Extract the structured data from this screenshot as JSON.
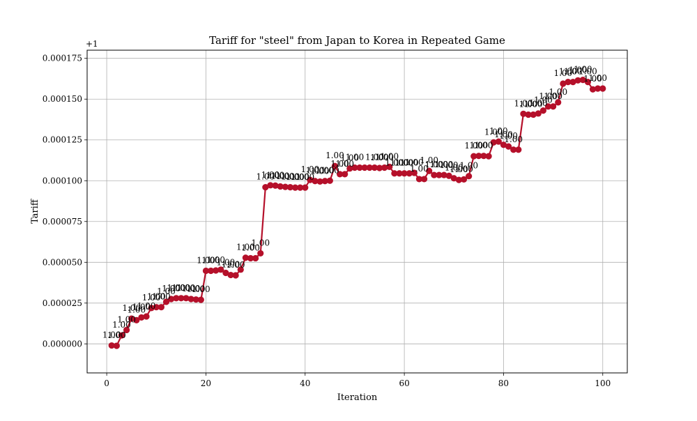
{
  "chart_data": {
    "type": "line",
    "title": "Tariff for \"steel\" from Japan to Korea in Repeated Game",
    "xlabel": "Iteration",
    "ylabel": "Tariff",
    "y_offset_label": "+1",
    "xlim": [
      -3.95,
      104.95
    ],
    "ylim": [
      -1.78e-05,
      0.00018
    ],
    "xticks": [
      0,
      20,
      40,
      60,
      80,
      100
    ],
    "xtick_labels": [
      "0",
      "20",
      "40",
      "60",
      "80",
      "100"
    ],
    "yticks": [
      0,
      2.5e-05,
      5e-05,
      7.5e-05,
      0.0001,
      0.000125,
      0.00015,
      0.000175
    ],
    "ytick_labels": [
      "0.000000",
      "0.000025",
      "0.000050",
      "0.000075",
      "0.000100",
      "0.000125",
      "0.000150",
      "0.000175"
    ],
    "grid": true,
    "color": "#b5102a",
    "series": [
      {
        "x": [
          1,
          2,
          3,
          4,
          5,
          6,
          7,
          8,
          9,
          10,
          11,
          12,
          13,
          14,
          15,
          16,
          17,
          18,
          19,
          20,
          21,
          22,
          23,
          24,
          25,
          26,
          27,
          28,
          29,
          30,
          31,
          32,
          33,
          34,
          35,
          36,
          37,
          38,
          39,
          40,
          41,
          42,
          43,
          44,
          45,
          46,
          47,
          48,
          49,
          50,
          51,
          52,
          53,
          54,
          55,
          56,
          57,
          58,
          59,
          60,
          61,
          62,
          63,
          64,
          65,
          66,
          67,
          68,
          69,
          70,
          71,
          72,
          73,
          74,
          75,
          76,
          77,
          78,
          79,
          80,
          81,
          82,
          83,
          84,
          85,
          86,
          87,
          88,
          89,
          90,
          91,
          92,
          93,
          94,
          95,
          96,
          97,
          98,
          99,
          100
        ],
        "values": [
          -1e-06,
          -1.2e-06,
          5.2e-06,
          8.5e-06,
          1.55e-05,
          1.45e-05,
          1.62e-05,
          1.68e-05,
          2.2e-05,
          2.25e-05,
          2.25e-05,
          2.58e-05,
          2.75e-05,
          2.8e-05,
          2.8e-05,
          2.8e-05,
          2.75e-05,
          2.72e-05,
          2.7e-05,
          4.48e-05,
          4.48e-05,
          4.5e-05,
          4.55e-05,
          4.35e-05,
          4.22e-05,
          4.2e-05,
          4.55e-05,
          5.28e-05,
          5.25e-05,
          5.25e-05,
          5.55e-05,
          9.6e-05,
          9.72e-05,
          9.7e-05,
          9.65e-05,
          9.62e-05,
          9.6e-05,
          9.58e-05,
          9.58e-05,
          9.58e-05,
          0.0001005,
          9.98e-05,
          9.95e-05,
          9.98e-05,
          0.0001,
          0.000109,
          0.000104,
          0.000104,
          0.0001075,
          0.000108,
          0.000108,
          0.000108,
          0.000108,
          0.000108,
          0.0001078,
          0.000108,
          0.0001085,
          0.0001045,
          0.0001045,
          0.0001045,
          0.0001045,
          0.0001048,
          0.000101,
          0.000101,
          0.000106,
          0.0001035,
          0.0001035,
          0.0001035,
          0.000103,
          0.0001015,
          0.0001005,
          0.0001008,
          0.0001028,
          0.000115,
          0.0001152,
          0.0001152,
          0.000115,
          0.0001235,
          0.000124,
          0.000122,
          0.000121,
          0.000119,
          0.000119,
          0.000141,
          0.0001405,
          0.0001405,
          0.0001412,
          0.000143,
          0.0001455,
          0.0001455,
          0.000148,
          0.0001595,
          0.0001605,
          0.0001605,
          0.0001615,
          0.0001618,
          0.0001605,
          0.000156,
          0.0001565,
          0.0001565
        ]
      }
    ],
    "data_label_text": "1.00",
    "data_labels": [
      {
        "x": 1,
        "text": "1.00"
      },
      {
        "x": 2,
        "text": "1.00"
      },
      {
        "x": 3,
        "text": "1.00"
      },
      {
        "x": 4,
        "text": "1.00"
      },
      {
        "x": 5,
        "text": "1.00"
      },
      {
        "x": 6,
        "text": "1.00"
      },
      {
        "x": 7,
        "text": "1.00"
      },
      {
        "x": 8,
        "text": "1.00"
      },
      {
        "x": 9,
        "text": "1.00"
      },
      {
        "x": 10,
        "text": "1.00"
      },
      {
        "x": 11,
        "text": "1.00"
      },
      {
        "x": 12,
        "text": "1.00"
      },
      {
        "x": 13,
        "text": "1.00"
      },
      {
        "x": 14,
        "text": "1.00"
      },
      {
        "x": 15,
        "text": "1.00"
      },
      {
        "x": 16,
        "text": "1.00"
      },
      {
        "x": 17,
        "text": "1.00"
      },
      {
        "x": 18,
        "text": "1.00"
      },
      {
        "x": 19,
        "text": "1.00"
      },
      {
        "x": 20,
        "text": "1.00"
      },
      {
        "x": 21,
        "text": "1.00"
      },
      {
        "x": 22,
        "text": "1.00"
      },
      {
        "x": 24,
        "text": "1.00"
      },
      {
        "x": 25,
        "text": "1.00"
      },
      {
        "x": 26,
        "text": "1.00"
      },
      {
        "x": 28,
        "text": "1.00"
      },
      {
        "x": 29,
        "text": "1.00"
      },
      {
        "x": 31,
        "text": "1.00"
      },
      {
        "x": 32,
        "text": "1.00"
      },
      {
        "x": 33,
        "text": "1.00"
      },
      {
        "x": 34,
        "text": "1.00"
      },
      {
        "x": 35,
        "text": "1.00"
      },
      {
        "x": 36,
        "text": "1.00"
      },
      {
        "x": 37,
        "text": "1.00"
      },
      {
        "x": 38,
        "text": "1.00"
      },
      {
        "x": 39,
        "text": "1.00"
      },
      {
        "x": 40,
        "text": "1.00"
      },
      {
        "x": 41,
        "text": "1.00"
      },
      {
        "x": 42,
        "text": "1.00"
      },
      {
        "x": 43,
        "text": "1.00"
      },
      {
        "x": 44,
        "text": "1.00"
      },
      {
        "x": 45,
        "text": "1.00"
      },
      {
        "x": 46,
        "text": "1.00"
      },
      {
        "x": 47,
        "text": "1.00"
      },
      {
        "x": 48,
        "text": "1.00"
      },
      {
        "x": 49,
        "text": "1.00"
      },
      {
        "x": 50,
        "text": "1.00"
      },
      {
        "x": 54,
        "text": "1.00"
      },
      {
        "x": 55,
        "text": "1.00"
      },
      {
        "x": 56,
        "text": "1.00"
      },
      {
        "x": 57,
        "text": "1.00"
      },
      {
        "x": 58,
        "text": "1.00"
      },
      {
        "x": 59,
        "text": "1.00"
      },
      {
        "x": 60,
        "text": "1.00"
      },
      {
        "x": 61,
        "text": "1.00"
      },
      {
        "x": 62,
        "text": "1.00"
      },
      {
        "x": 63,
        "text": "1.00"
      },
      {
        "x": 65,
        "text": "1.00"
      },
      {
        "x": 66,
        "text": "1.00"
      },
      {
        "x": 67,
        "text": "1.00"
      },
      {
        "x": 68,
        "text": "1.00"
      },
      {
        "x": 69,
        "text": "1.00"
      },
      {
        "x": 70,
        "text": "1.00"
      },
      {
        "x": 71,
        "text": "1.00"
      },
      {
        "x": 72,
        "text": "1.00"
      },
      {
        "x": 73,
        "text": "1.00"
      },
      {
        "x": 74,
        "text": "1.00"
      },
      {
        "x": 75,
        "text": "1.00"
      },
      {
        "x": 76,
        "text": "1.00"
      },
      {
        "x": 78,
        "text": "1.00"
      },
      {
        "x": 79,
        "text": "1.00"
      },
      {
        "x": 80,
        "text": "1.00"
      },
      {
        "x": 81,
        "text": "1.00"
      },
      {
        "x": 82,
        "text": "1.00"
      },
      {
        "x": 84,
        "text": "1.00"
      },
      {
        "x": 85,
        "text": "1.00"
      },
      {
        "x": 86,
        "text": "1.00"
      },
      {
        "x": 87,
        "text": "1.00"
      },
      {
        "x": 88,
        "text": "1.00"
      },
      {
        "x": 89,
        "text": "1.00"
      },
      {
        "x": 90,
        "text": "1.00"
      },
      {
        "x": 91,
        "text": "1.00"
      },
      {
        "x": 92,
        "text": "1.00"
      },
      {
        "x": 93,
        "text": "1.00"
      },
      {
        "x": 94,
        "text": "1.00"
      },
      {
        "x": 95,
        "text": "1.00"
      },
      {
        "x": 96,
        "text": "1.00"
      },
      {
        "x": 97,
        "text": "1.00"
      },
      {
        "x": 98,
        "text": "1.00"
      },
      {
        "x": 99,
        "text": "1.00"
      }
    ]
  }
}
